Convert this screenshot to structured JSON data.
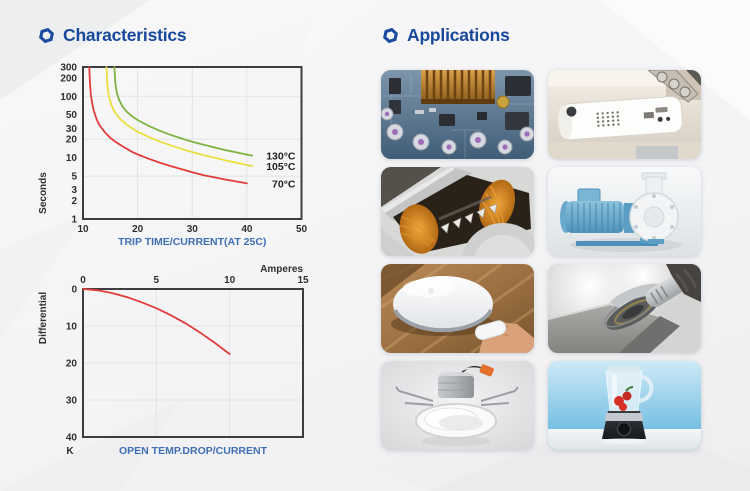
{
  "sections": {
    "characteristics": {
      "title": "Characteristics"
    },
    "applications": {
      "title": "Applications"
    }
  },
  "colors": {
    "heading_blue": "#17489b",
    "axis_label_blue": "#3f6fb5",
    "curve_70c": "#e23c38",
    "curve_105c": "#eadf3f",
    "curve_130c": "#7eb33f"
  },
  "chart_data": [
    {
      "id": "trip-time",
      "type": "line",
      "title": "",
      "xlabel": "TRIP TIME/CURRENT(AT 25C)",
      "ylabel": "Seconds",
      "xlim": [
        10,
        50
      ],
      "ylim": [
        1,
        300
      ],
      "y_scale": "log",
      "x_ticks": [
        10,
        20,
        30,
        40,
        50
      ],
      "y_ticks": [
        300,
        200,
        100,
        50,
        30,
        20,
        10,
        5,
        3,
        2,
        1
      ],
      "grid_x": [
        20,
        30,
        40
      ],
      "grid_y": [
        5,
        20,
        100
      ],
      "legend_position": "right-of-curve-ends",
      "series": [
        {
          "name": "130C",
          "label": "130°C",
          "color": "#7eb33f",
          "points": [
            [
              15.75,
              300
            ],
            [
              15.8,
              240
            ],
            [
              15.9,
              175
            ],
            [
              16.05,
              135
            ],
            [
              16.3,
              105
            ],
            [
              16.7,
              84
            ],
            [
              17.2,
              69
            ],
            [
              18,
              56
            ],
            [
              19,
              47
            ],
            [
              20,
              41
            ],
            [
              22,
              33
            ],
            [
              24,
              27.5
            ],
            [
              26,
              23.6
            ],
            [
              28,
              20.6
            ],
            [
              30,
              18.2
            ],
            [
              32,
              16.3
            ],
            [
              34,
              14.7
            ],
            [
              36,
              13.3
            ],
            [
              38,
              12.2
            ],
            [
              40,
              11.2
            ],
            [
              41,
              10.8
            ]
          ]
        },
        {
          "name": "105C",
          "label": "105°C",
          "color": "#eadf3f",
          "points": [
            [
              14.3,
              300
            ],
            [
              14.35,
              230
            ],
            [
              14.45,
              160
            ],
            [
              14.6,
              120
            ],
            [
              14.85,
              92
            ],
            [
              15.2,
              72
            ],
            [
              15.7,
              58
            ],
            [
              16.3,
              48
            ],
            [
              17,
              41
            ],
            [
              18,
              34.5
            ],
            [
              19,
              30
            ],
            [
              20,
              26.5
            ],
            [
              22,
              21.8
            ],
            [
              24,
              18.4
            ],
            [
              26,
              15.9
            ],
            [
              28,
              13.9
            ],
            [
              30,
              12.3
            ],
            [
              32,
              11
            ],
            [
              34,
              10
            ],
            [
              36,
              9.1
            ],
            [
              38,
              8.3
            ],
            [
              40,
              7.6
            ],
            [
              41,
              7.3
            ]
          ]
        },
        {
          "name": "70C",
          "label": "70°C",
          "color": "#e23c38",
          "points": [
            [
              11.15,
              300
            ],
            [
              11.2,
              220
            ],
            [
              11.3,
              150
            ],
            [
              11.45,
              105
            ],
            [
              11.7,
              75
            ],
            [
              12,
              57
            ],
            [
              12.5,
              42
            ],
            [
              13,
              34
            ],
            [
              14,
              26
            ],
            [
              15,
              21
            ],
            [
              16,
              18
            ],
            [
              17.5,
              14.8
            ],
            [
              19,
              12.4
            ],
            [
              20,
              11.3
            ],
            [
              22,
              9.6
            ],
            [
              24,
              8.3
            ],
            [
              26,
              7.3
            ],
            [
              28,
              6.5
            ],
            [
              30,
              5.8
            ],
            [
              32,
              5.2
            ],
            [
              34,
              4.8
            ],
            [
              36,
              4.4
            ],
            [
              38,
              4.1
            ],
            [
              40,
              3.8
            ]
          ]
        }
      ]
    },
    {
      "id": "temp-drop",
      "type": "line",
      "title": "",
      "xlabel": "OPEN TEMP.DROP/CURRENT",
      "ylabel": "Differential",
      "x_unit": "Amperes",
      "y_unit": "K",
      "xlim": [
        0,
        15
      ],
      "ylim": [
        0,
        40
      ],
      "y_inverted": true,
      "x_axis_position": "top",
      "x_ticks": [
        0,
        5,
        10,
        15
      ],
      "y_ticks": [
        0,
        10,
        20,
        30,
        40
      ],
      "grid_x": [
        5,
        10
      ],
      "grid_y": [
        10,
        20,
        30
      ],
      "series": [
        {
          "name": "temp-drop",
          "color": "#e23c38",
          "points": [
            [
              0,
              0
            ],
            [
              1,
              0.35
            ],
            [
              2,
              1.1
            ],
            [
              3,
              2.2
            ],
            [
              4,
              3.6
            ],
            [
              5,
              5.2
            ],
            [
              6,
              7.1
            ],
            [
              7,
              9.3
            ],
            [
              8,
              11.8
            ],
            [
              9,
              14.6
            ],
            [
              10,
              17.6
            ]
          ]
        }
      ]
    }
  ],
  "applications": {
    "items": [
      {
        "name": "circuit-board",
        "label": "PCB circuit board with gold heatsink and capacitors"
      },
      {
        "name": "projector",
        "label": "Ceiling-mounted white projector"
      },
      {
        "name": "motor-winding",
        "label": "Electric motor stator with copper windings"
      },
      {
        "name": "water-pump",
        "label": "Blue centrifugal water pump"
      },
      {
        "name": "robot-cleaner",
        "label": "Round white appliance on wooden table being wiped"
      },
      {
        "name": "angle-grinder",
        "label": "Angle grinder grinding concrete with dust"
      },
      {
        "name": "led-downlight",
        "label": "Recessed LED gimbal downlight with orange wire connector"
      },
      {
        "name": "blender",
        "label": "Blender with red fruit on blue background"
      }
    ]
  }
}
